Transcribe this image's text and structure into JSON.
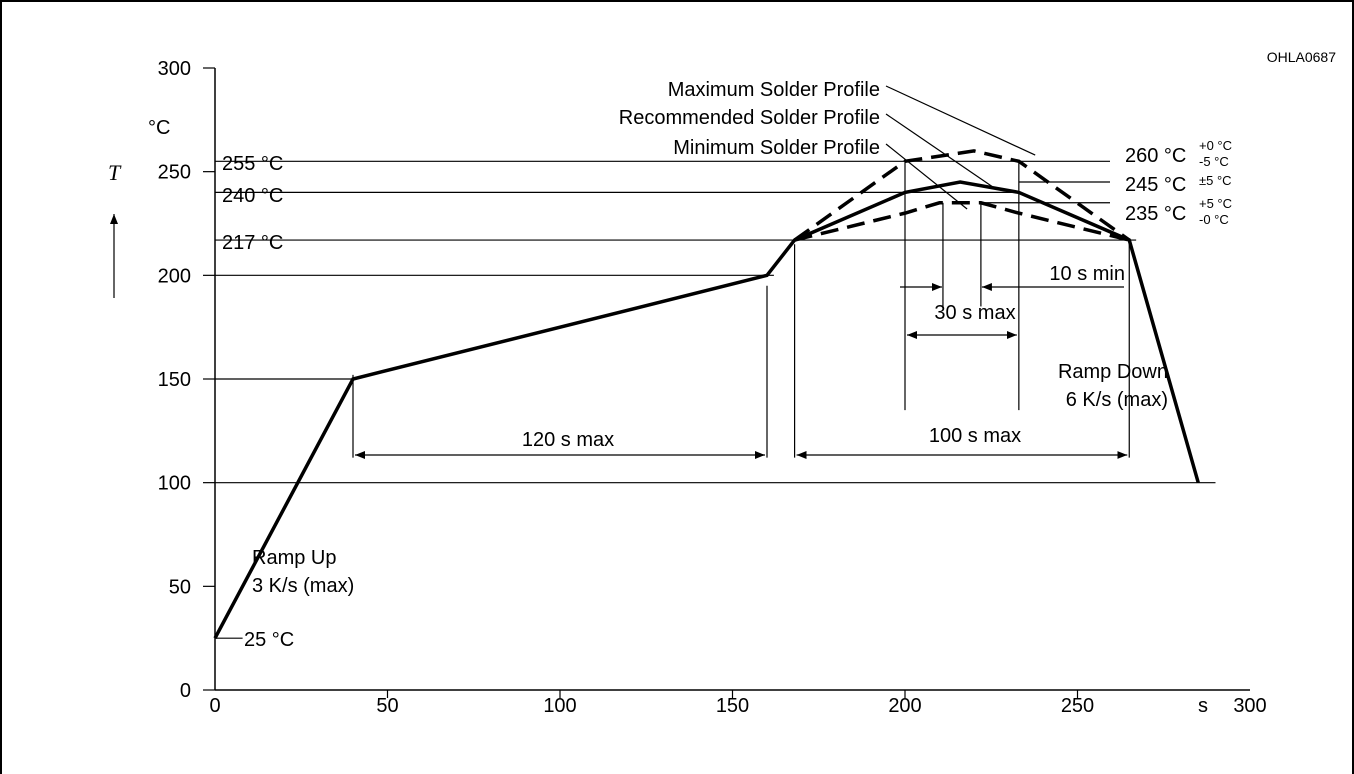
{
  "chart_data": {
    "type": "line",
    "figure_id": "OHLA0687",
    "ylabel": "T",
    "y_unit": "°C",
    "x_unit": "s",
    "xlim": [
      0,
      300
    ],
    "ylim": [
      0,
      300
    ],
    "x_ticks": [
      "0",
      "50",
      "100",
      "150",
      "200",
      "250",
      "300"
    ],
    "y_ticks": [
      "0",
      "50",
      "100",
      "150",
      "200",
      "250",
      "300"
    ],
    "series": [
      {
        "name": "Recommended Solder Profile",
        "style": "solid",
        "x": [
          0,
          40,
          160,
          168,
          200,
          216,
          233,
          265,
          285
        ],
        "y": [
          25,
          150,
          200,
          217,
          240,
          245,
          240,
          217,
          100
        ]
      },
      {
        "name": "Maximum Solder Profile",
        "style": "dashed",
        "x": [
          168,
          200,
          220,
          233,
          265
        ],
        "y": [
          217,
          255,
          260,
          255,
          217
        ]
      },
      {
        "name": "Minimum Solder Profile",
        "style": "dashed",
        "x": [
          168,
          200,
          210,
          222,
          233,
          265
        ],
        "y": [
          217,
          230,
          235,
          235,
          230,
          217
        ]
      }
    ],
    "annotations": {
      "t255": "255 °C",
      "t240": "240 °C",
      "t217": "217 °C",
      "t25": "25 °C",
      "peak_max_value": "260 °C",
      "peak_max_tol_plus": "+0 °C",
      "peak_max_tol_minus": "-5 °C",
      "peak_rec_value": "245 °C",
      "peak_rec_tol": "±5 °C",
      "peak_min_value": "235 °C",
      "peak_min_tol_plus": "+5 °C",
      "peak_min_tol_minus": "-0 °C",
      "ramp_up_1": "Ramp Up",
      "ramp_up_2": "3 K/s (max)",
      "ramp_down_1": "Ramp Down",
      "ramp_down_2": "6 K/s (max)",
      "d120": "120 s max",
      "d100": "100 s max",
      "d30": "30 s max",
      "d10": "10 s min",
      "max_profile": "Maximum Solder Profile",
      "rec_profile": "Recommended Solder Profile",
      "min_profile": "Minimum Solder Profile"
    }
  }
}
